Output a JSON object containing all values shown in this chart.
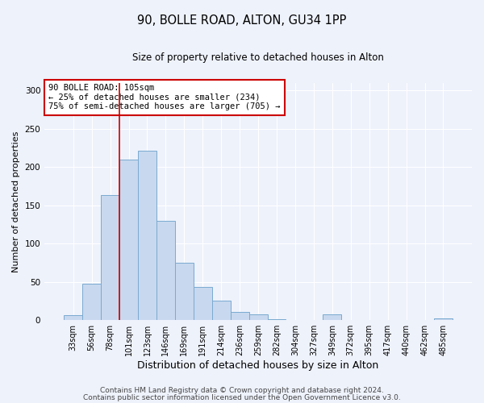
{
  "title": "90, BOLLE ROAD, ALTON, GU34 1PP",
  "subtitle": "Size of property relative to detached houses in Alton",
  "xlabel": "Distribution of detached houses by size in Alton",
  "ylabel": "Number of detached properties",
  "bin_labels": [
    "33sqm",
    "56sqm",
    "78sqm",
    "101sqm",
    "123sqm",
    "146sqm",
    "169sqm",
    "191sqm",
    "214sqm",
    "236sqm",
    "259sqm",
    "282sqm",
    "304sqm",
    "327sqm",
    "349sqm",
    "372sqm",
    "395sqm",
    "417sqm",
    "440sqm",
    "462sqm",
    "485sqm"
  ],
  "bar_values": [
    7,
    48,
    163,
    210,
    221,
    130,
    75,
    43,
    25,
    11,
    8,
    1,
    0,
    0,
    8,
    0,
    0,
    0,
    0,
    0,
    2
  ],
  "bar_color": "#c8d8ee",
  "bar_edgecolor": "#7aaad0",
  "vline_color": "#cc0000",
  "annotation_title": "90 BOLLE ROAD: 105sqm",
  "annotation_line1": "← 25% of detached houses are smaller (234)",
  "annotation_line2": "75% of semi-detached houses are larger (705) →",
  "annotation_box_color": "#cc0000",
  "ylim": [
    0,
    310
  ],
  "yticks": [
    0,
    50,
    100,
    150,
    200,
    250,
    300
  ],
  "footer1": "Contains HM Land Registry data © Crown copyright and database right 2024.",
  "footer2": "Contains public sector information licensed under the Open Government Licence v3.0.",
  "bg_color": "#eef2fb",
  "plot_bg_color": "#eef2fb",
  "grid_color": "#ffffff",
  "title_fontsize": 10.5,
  "subtitle_fontsize": 8.5,
  "xlabel_fontsize": 9,
  "ylabel_fontsize": 8,
  "tick_fontsize": 7,
  "footer_fontsize": 6.5
}
